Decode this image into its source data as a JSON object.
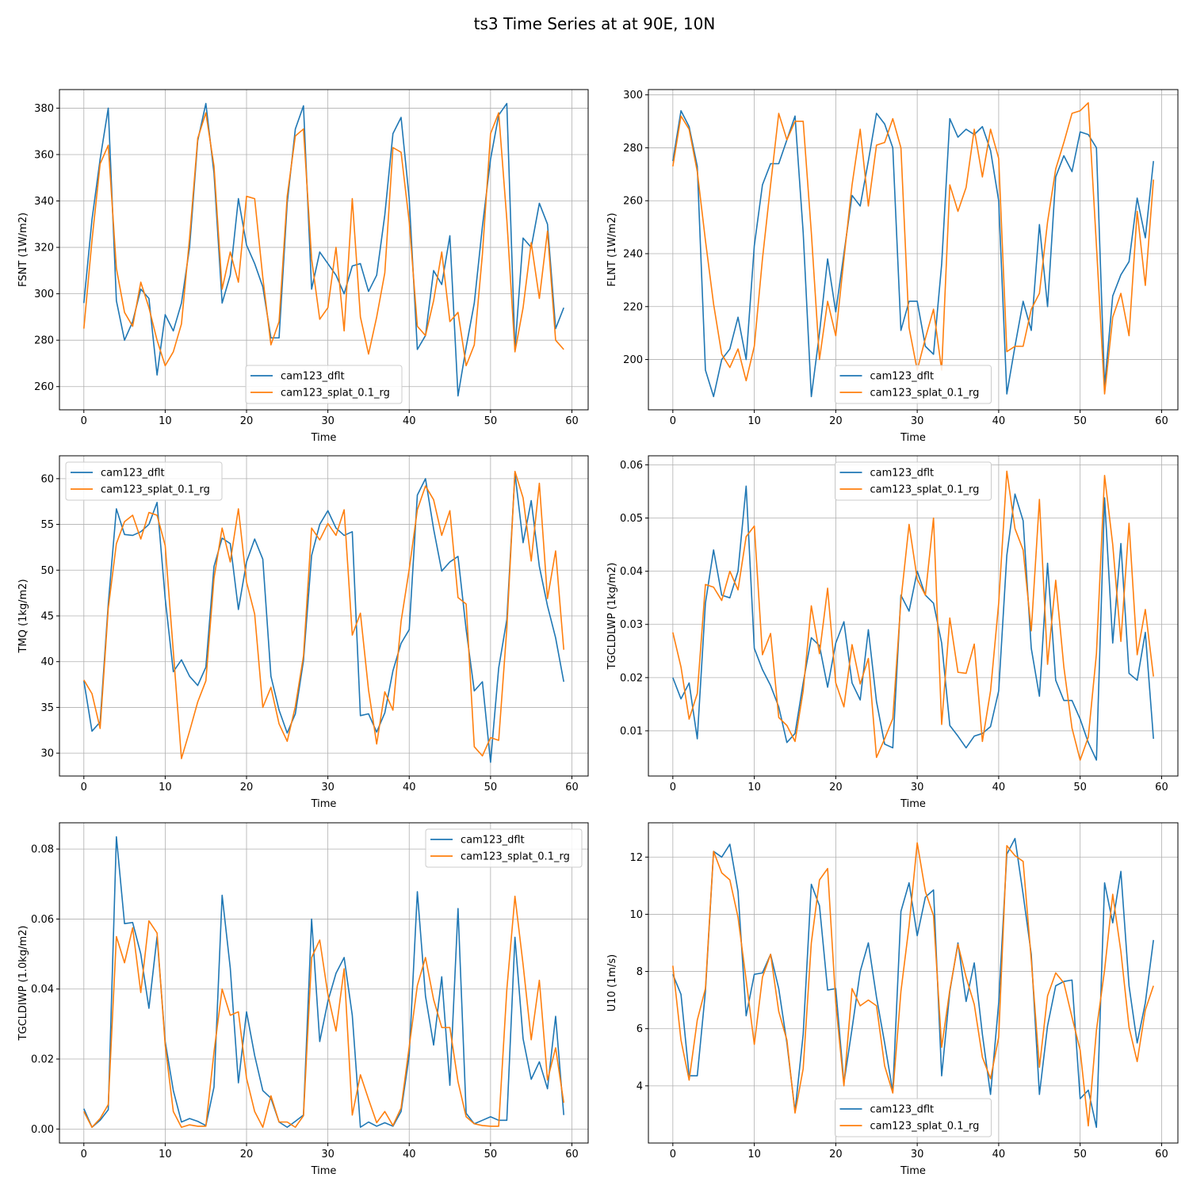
{
  "figure": {
    "title": "ts3 Time Series at at 90E, 10N"
  },
  "colors": {
    "series1": "#1f77b4",
    "series2": "#ff7f0e",
    "grid": "#b0b0b0",
    "axes": "#000000"
  },
  "chart_data": [
    {
      "type": "line",
      "xlabel": "Time",
      "ylabel": "FSNT (1W/m2)",
      "xlim": [
        -3,
        62
      ],
      "ylim": [
        250,
        388
      ],
      "xticks": [
        0,
        10,
        20,
        30,
        40,
        50,
        60
      ],
      "yticks": [
        260,
        280,
        300,
        320,
        340,
        360,
        380
      ],
      "grid": true,
      "legend_position": "lower center",
      "series": [
        {
          "name": "cam123_dflt",
          "values": [
            296,
            332,
            358,
            380,
            297,
            280,
            288,
            302,
            298,
            265,
            291,
            284,
            296,
            320,
            366,
            382,
            352,
            296,
            308,
            341,
            321,
            313,
            303,
            281,
            281,
            339,
            371,
            381,
            302,
            318,
            313,
            308,
            300,
            312,
            313,
            301,
            308,
            334,
            369,
            376,
            341,
            276,
            282,
            310,
            304,
            325,
            256,
            277,
            296,
            329,
            358,
            377,
            382,
            276,
            324,
            320,
            339,
            330,
            285,
            294
          ]
        },
        {
          "name": "cam123_splat_0.1_rg",
          "values": [
            285,
            323,
            356,
            364,
            311,
            292,
            286,
            305,
            294,
            280,
            269,
            275,
            287,
            324,
            367,
            378,
            355,
            302,
            318,
            305,
            342,
            341,
            307,
            278,
            288,
            342,
            368,
            371,
            315,
            289,
            294,
            320,
            284,
            341,
            290,
            274,
            290,
            309,
            363,
            361,
            331,
            286,
            282,
            297,
            318,
            288,
            292,
            269,
            278,
            317,
            369,
            378,
            332,
            275,
            294,
            322,
            298,
            327,
            280,
            276
          ]
        }
      ]
    },
    {
      "type": "line",
      "xlabel": "Time",
      "ylabel": "FLNT (1W/m2)",
      "xlim": [
        -3,
        62
      ],
      "ylim": [
        181,
        302
      ],
      "xticks": [
        0,
        10,
        20,
        30,
        40,
        50,
        60
      ],
      "yticks": [
        200,
        220,
        240,
        260,
        280,
        300
      ],
      "grid": true,
      "legend_position": "lower center",
      "series": [
        {
          "name": "cam123_dflt",
          "values": [
            275,
            294,
            288,
            273,
            196,
            186,
            200,
            204,
            216,
            200,
            243,
            266,
            274,
            274,
            283,
            292,
            248,
            186,
            210,
            238,
            218,
            240,
            262,
            258,
            275,
            293,
            289,
            280,
            211,
            222,
            222,
            205,
            202,
            236,
            291,
            284,
            287,
            285,
            288,
            279,
            260,
            187,
            205,
            222,
            211,
            251,
            220,
            269,
            277,
            271,
            286,
            285,
            280,
            190,
            224,
            232,
            237,
            261,
            246,
            275
          ]
        },
        {
          "name": "cam123_splat_0.1_rg",
          "values": [
            273,
            292,
            287,
            271,
            245,
            221,
            202,
            197,
            204,
            192,
            205,
            238,
            266,
            293,
            283,
            290,
            290,
            248,
            200,
            222,
            209,
            238,
            266,
            287,
            258,
            281,
            282,
            291,
            280,
            212,
            196,
            208,
            219,
            196,
            266,
            256,
            265,
            287,
            269,
            287,
            276,
            203,
            205,
            205,
            219,
            225,
            252,
            272,
            282,
            293,
            294,
            297,
            243,
            187,
            216,
            225,
            209,
            256,
            228,
            268
          ]
        }
      ]
    },
    {
      "type": "line",
      "xlabel": "Time",
      "ylabel": "TMQ (1kg/m2)",
      "xlim": [
        -3,
        62
      ],
      "ylim": [
        27.5,
        62.5
      ],
      "xticks": [
        0,
        10,
        20,
        30,
        40,
        50,
        60
      ],
      "yticks": [
        30,
        35,
        40,
        45,
        50,
        55,
        60
      ],
      "grid": true,
      "legend_position": "upper left",
      "series": [
        {
          "name": "cam123_dflt",
          "values": [
            37.9,
            32.4,
            33.4,
            46.3,
            56.7,
            53.9,
            53.8,
            54.2,
            55.0,
            57.4,
            46.9,
            38.9,
            40.2,
            38.4,
            37.4,
            39.4,
            50.4,
            53.5,
            52.9,
            45.7,
            50.9,
            53.4,
            51.2,
            38.4,
            34.7,
            32.2,
            34.3,
            40.1,
            51.6,
            55.0,
            56.5,
            54.6,
            53.8,
            54.2,
            34.1,
            34.3,
            32.3,
            34.4,
            39.0,
            42.0,
            43.5,
            58.2,
            60.0,
            54.5,
            49.9,
            50.9,
            51.5,
            43.5,
            36.8,
            37.8,
            29.0,
            39.3,
            44.6,
            60.6,
            53.0,
            57.6,
            50.4,
            46.1,
            42.6,
            37.8
          ]
        },
        {
          "name": "cam123_splat_0.1_rg",
          "values": [
            38.0,
            36.5,
            32.7,
            45.8,
            52.9,
            55.3,
            56.0,
            53.4,
            56.3,
            56.0,
            52.7,
            41.1,
            29.4,
            32.4,
            35.6,
            37.9,
            49.1,
            54.6,
            50.9,
            56.7,
            48.7,
            45.2,
            35.0,
            37.2,
            33.2,
            31.3,
            35.1,
            40.6,
            54.6,
            53.3,
            55.1,
            53.8,
            56.6,
            42.9,
            45.3,
            36.9,
            31.0,
            36.7,
            34.7,
            44.4,
            50.1,
            56.6,
            59.2,
            57.7,
            53.8,
            56.5,
            47.0,
            46.3,
            30.7,
            29.7,
            31.7,
            31.4,
            43.6,
            60.8,
            57.9,
            51.0,
            59.5,
            46.9,
            52.1,
            41.3
          ]
        }
      ]
    },
    {
      "type": "line",
      "xlabel": "Time",
      "ylabel": "TGCLDLWP (1kg/m2)",
      "xlim": [
        -3,
        62
      ],
      "ylim": [
        0.0015,
        0.0617
      ],
      "xticks": [
        0,
        10,
        20,
        30,
        40,
        50,
        60
      ],
      "yticks": [
        0.01,
        0.02,
        0.03,
        0.04,
        0.05,
        0.06
      ],
      "grid": true,
      "legend_position": "upper center",
      "series": [
        {
          "name": "cam123_dflt",
          "values": [
            0.02,
            0.016,
            0.019,
            0.0085,
            0.034,
            0.044,
            0.0355,
            0.035,
            0.04,
            0.056,
            0.0255,
            0.0215,
            0.0185,
            0.0145,
            0.0078,
            0.0095,
            0.019,
            0.0275,
            0.026,
            0.0182,
            0.0265,
            0.0305,
            0.019,
            0.0158,
            0.029,
            0.0155,
            0.0075,
            0.0068,
            0.0355,
            0.0325,
            0.04,
            0.0355,
            0.034,
            0.0265,
            0.011,
            0.009,
            0.0068,
            0.009,
            0.0095,
            0.0108,
            0.0175,
            0.043,
            0.0545,
            0.0495,
            0.0255,
            0.0165,
            0.0415,
            0.0195,
            0.0157,
            0.0157,
            0.0122,
            0.0078,
            0.0045,
            0.0538,
            0.0265,
            0.0452,
            0.0208,
            0.0195,
            0.0285,
            0.0085
          ]
        },
        {
          "name": "cam123_splat_0.1_rg",
          "values": [
            0.0285,
            0.022,
            0.0122,
            0.017,
            0.0375,
            0.037,
            0.0345,
            0.04,
            0.0365,
            0.0465,
            0.0485,
            0.0243,
            0.0283,
            0.0125,
            0.011,
            0.008,
            0.0175,
            0.0335,
            0.0245,
            0.0368,
            0.019,
            0.0145,
            0.0262,
            0.0188,
            0.0236,
            0.005,
            0.0085,
            0.0123,
            0.0345,
            0.0488,
            0.0385,
            0.0355,
            0.05,
            0.0112,
            0.0312,
            0.021,
            0.0208,
            0.0263,
            0.008,
            0.0175,
            0.034,
            0.0588,
            0.048,
            0.044,
            0.0288,
            0.0535,
            0.0225,
            0.0383,
            0.022,
            0.0105,
            0.0045,
            0.0088,
            0.0245,
            0.058,
            0.045,
            0.0268,
            0.049,
            0.0243,
            0.0328,
            0.0202
          ]
        }
      ]
    },
    {
      "type": "line",
      "xlabel": "Time",
      "ylabel": "TGCLDIWP (1.0kg/m2)",
      "xlim": [
        -3,
        62
      ],
      "ylim": [
        -0.004,
        0.0875
      ],
      "xticks": [
        0,
        10,
        20,
        30,
        40,
        50,
        60
      ],
      "yticks": [
        0.0,
        0.02,
        0.04,
        0.06,
        0.08
      ],
      "ytick_labels": [
        "0.00",
        "0.02",
        "0.04",
        "0.06",
        "0.08"
      ],
      "grid": true,
      "legend_position": "upper right",
      "series": [
        {
          "name": "cam123_dflt",
          "values": [
            0.0058,
            0.0005,
            0.0025,
            0.0055,
            0.0835,
            0.0587,
            0.059,
            0.05,
            0.0345,
            0.055,
            0.025,
            0.011,
            0.002,
            0.003,
            0.0022,
            0.001,
            0.012,
            0.0668,
            0.046,
            0.0132,
            0.0335,
            0.021,
            0.011,
            0.0088,
            0.002,
            0.0005,
            0.0022,
            0.004,
            0.06,
            0.025,
            0.0365,
            0.0445,
            0.049,
            0.0325,
            0.0005,
            0.002,
            0.0008,
            0.0018,
            0.0008,
            0.005,
            0.021,
            0.0678,
            0.038,
            0.024,
            0.0435,
            0.0125,
            0.063,
            0.0045,
            0.0015,
            0.0025,
            0.0035,
            0.0025,
            0.0025,
            0.0548,
            0.0258,
            0.0142,
            0.0192,
            0.0115,
            0.0322,
            0.004
          ]
        },
        {
          "name": "cam123_splat_0.1_rg",
          "values": [
            0.005,
            0.0005,
            0.003,
            0.007,
            0.055,
            0.0475,
            0.0575,
            0.039,
            0.0595,
            0.056,
            0.024,
            0.005,
            0.0005,
            0.0012,
            0.0008,
            0.0008,
            0.022,
            0.04,
            0.0325,
            0.0335,
            0.0145,
            0.005,
            0.0005,
            0.0095,
            0.002,
            0.002,
            0.0005,
            0.0038,
            0.049,
            0.054,
            0.0385,
            0.028,
            0.0458,
            0.004,
            0.0155,
            0.0085,
            0.0018,
            0.005,
            0.001,
            0.006,
            0.0235,
            0.041,
            0.049,
            0.037,
            0.029,
            0.029,
            0.0135,
            0.0035,
            0.0015,
            0.001,
            0.0008,
            0.0008,
            0.0398,
            0.0665,
            0.047,
            0.0255,
            0.0425,
            0.014,
            0.0232,
            0.0075
          ]
        }
      ]
    },
    {
      "type": "line",
      "xlabel": "Time",
      "ylabel": "U10 (1m/s)",
      "xlim": [
        -3,
        62
      ],
      "ylim": [
        2.0,
        13.2
      ],
      "xticks": [
        0,
        10,
        20,
        30,
        40,
        50,
        60
      ],
      "yticks": [
        4,
        6,
        8,
        10,
        12
      ],
      "grid": true,
      "legend_position": "lower center",
      "series": [
        {
          "name": "cam123_dflt",
          "values": [
            7.9,
            7.2,
            4.35,
            4.35,
            7.3,
            12.2,
            12.0,
            12.45,
            10.8,
            6.45,
            7.9,
            7.95,
            8.6,
            7.4,
            5.5,
            3.1,
            5.8,
            11.05,
            10.3,
            7.35,
            7.4,
            4.1,
            6.0,
            8.0,
            9.0,
            7.1,
            5.5,
            3.8,
            10.1,
            11.1,
            9.25,
            10.6,
            10.85,
            4.35,
            7.3,
            9.0,
            6.95,
            8.3,
            5.8,
            3.7,
            6.9,
            12.1,
            12.65,
            10.7,
            8.6,
            3.7,
            6.1,
            7.5,
            7.65,
            7.7,
            3.55,
            3.85,
            2.55,
            11.1,
            9.7,
            11.5,
            7.5,
            5.5,
            6.9,
            9.1
          ]
        },
        {
          "name": "cam123_splat_0.1_rg",
          "values": [
            8.2,
            5.6,
            4.2,
            6.3,
            7.4,
            12.2,
            11.45,
            11.2,
            9.9,
            7.7,
            5.45,
            7.8,
            8.6,
            6.6,
            5.6,
            3.05,
            4.6,
            9.0,
            11.2,
            11.6,
            6.9,
            4.0,
            7.4,
            6.8,
            7.0,
            6.8,
            4.7,
            3.75,
            7.3,
            9.6,
            12.5,
            10.8,
            9.95,
            5.35,
            7.35,
            8.95,
            7.8,
            6.85,
            5.0,
            4.25,
            5.7,
            12.4,
            12.05,
            11.85,
            8.4,
            4.65,
            7.15,
            7.95,
            7.6,
            6.4,
            5.25,
            2.6,
            5.95,
            8.05,
            10.7,
            8.7,
            6.05,
            4.85,
            6.65,
            7.5
          ]
        }
      ]
    }
  ]
}
